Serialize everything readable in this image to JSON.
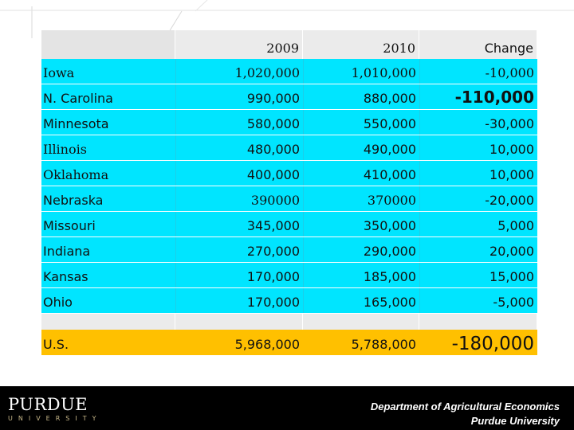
{
  "table": {
    "header": {
      "name": "",
      "y2009": "2009",
      "y2010": "2010",
      "change": "Change"
    },
    "rows": [
      {
        "name": "Iowa",
        "y2009": "1,020,000",
        "y2010": "1,010,000",
        "change": "-10,000"
      },
      {
        "name": "N. Carolina",
        "y2009": "990,000",
        "y2010": "880,000",
        "change": "-110,000"
      },
      {
        "name": "Minnesota",
        "y2009": "580,000",
        "y2010": "550,000",
        "change": "-30,000"
      },
      {
        "name": "Illinois",
        "y2009": "480,000",
        "y2010": "490,000",
        "change": "10,000"
      },
      {
        "name": "Oklahoma",
        "y2009": "400,000",
        "y2010": "410,000",
        "change": "10,000"
      },
      {
        "name": "Nebraska",
        "y2009": "390000",
        "y2010": "370000",
        "change": "-20,000"
      },
      {
        "name": "Missouri",
        "y2009": "345,000",
        "y2010": "350,000",
        "change": "5,000"
      },
      {
        "name": "Indiana",
        "y2009": "270,000",
        "y2010": "290,000",
        "change": "20,000"
      },
      {
        "name": "Kansas",
        "y2009": "170,000",
        "y2010": "185,000",
        "change": "15,000"
      },
      {
        "name": "Ohio",
        "y2009": "170,000",
        "y2010": "165,000",
        "change": "-5,000"
      }
    ],
    "total": {
      "name": "U.S.",
      "y2009": "5,968,000",
      "y2010": "5,788,000",
      "change": "-180,000"
    }
  },
  "footer": {
    "logo_word": "PURDUE",
    "logo_sub": "UNIVERSITY",
    "dept_line1": "Department of Agricultural Economics",
    "dept_line2": "Purdue University"
  },
  "colors": {
    "row_fill": "#00e5ff",
    "total_fill": "#ffc000",
    "header_fill": "#ebebeb",
    "footer_fill": "#000000",
    "logo_accent": "#c8b88a"
  }
}
